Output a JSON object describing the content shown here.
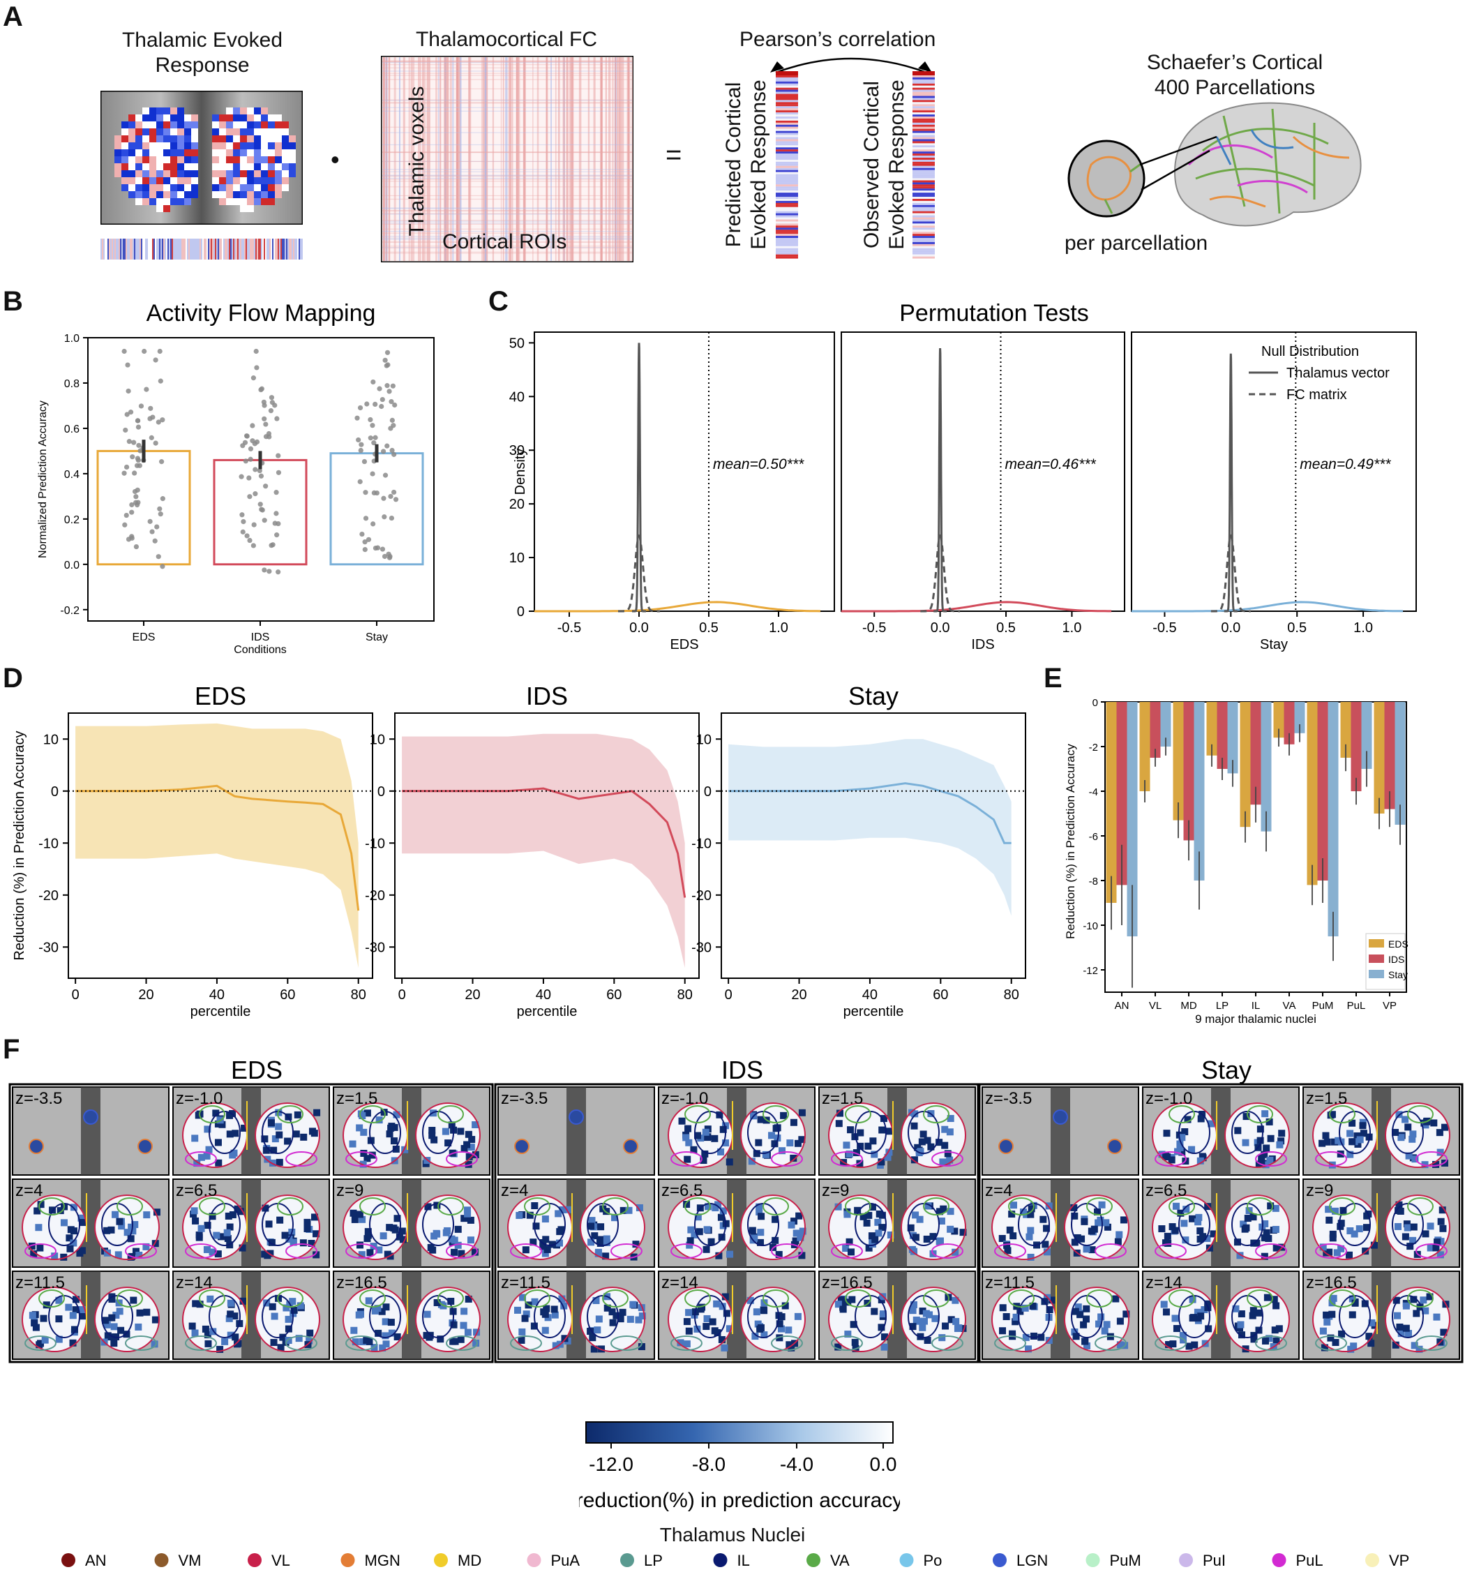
{
  "panels": {
    "A": {
      "letter": "A",
      "evoked_title_line1": "Thalamic Evoked",
      "evoked_title_line2": "Response",
      "fc_title": "Thalamocortical FC",
      "fc_ylabel": "Thalamic voxels",
      "fc_xlabel": "Cortical ROIs",
      "dot_operator": "•",
      "equals_operator": "=",
      "corr_title": "Pearson’s correlation",
      "predicted_line1": "Predicted Cortical",
      "predicted_line2": "Evoked Response",
      "observed_line1": "Observed Cortical",
      "observed_line2": "Evoked Response",
      "schaefer_line1": "Schaefer’s Cortical",
      "schaefer_line2": "400 Parcellations",
      "per_parcellation": "per parcellation"
    },
    "B": {
      "letter": "B"
    },
    "C": {
      "letter": "C"
    },
    "D": {
      "letter": "D"
    },
    "E": {
      "letter": "E"
    },
    "F": {
      "letter": "F",
      "groups": [
        "EDS",
        "IDS",
        "Stay"
      ],
      "slice_labels": [
        "z=-3.5",
        "z=-1.0",
        "z=1.5",
        "z=4",
        "z=6.5",
        "z=9",
        "z=11.5",
        "z=14",
        "z=16.5"
      ],
      "colorbar_ticks": [
        "-12.0",
        "-8.0",
        "-4.0",
        "0.0"
      ],
      "colorbar_label": "reduction(%) in prediction accuracy",
      "colorbar_colors": [
        "#0d2a6b",
        "#ffffff"
      ],
      "legend_title": "Thalamus Nuclei",
      "nuclei": [
        {
          "name": "AN",
          "color": "#7a1010"
        },
        {
          "name": "VM",
          "color": "#8c5a2b"
        },
        {
          "name": "VL",
          "color": "#c8204a"
        },
        {
          "name": "MGN",
          "color": "#e37d35"
        },
        {
          "name": "MD",
          "color": "#f0cc2a"
        },
        {
          "name": "PuA",
          "color": "#f0b8d0"
        },
        {
          "name": "LP",
          "color": "#5a9a90"
        },
        {
          "name": "IL",
          "color": "#0a1a70"
        },
        {
          "name": "VA",
          "color": "#5aaa48"
        },
        {
          "name": "Po",
          "color": "#78c6ea"
        },
        {
          "name": "LGN",
          "color": "#3a5ad0"
        },
        {
          "name": "PuM",
          "color": "#b8f0c8"
        },
        {
          "name": "PuI",
          "color": "#cbb8ea"
        },
        {
          "name": "PuL",
          "color": "#d22ad2"
        },
        {
          "name": "VP",
          "color": "#f8f0b8"
        }
      ]
    }
  },
  "chart_data": [
    {
      "id": "B",
      "type": "bar",
      "title": "Activity Flow Mapping",
      "xlabel": "Conditions",
      "ylabel": "Normalized Prediction Accuracy",
      "categories": [
        "EDS",
        "IDS",
        "Stay"
      ],
      "values": [
        0.5,
        0.46,
        0.49
      ],
      "error": [
        0.05,
        0.04,
        0.04
      ],
      "colors": [
        "#e8a838",
        "#d24a5a",
        "#7ab0d8"
      ],
      "ylim": [
        -0.25,
        1.0
      ],
      "yticks": [
        -0.2,
        0.0,
        0.2,
        0.4,
        0.6,
        0.8,
        1.0
      ],
      "points": "overlaid per-subject scatter (gray)"
    },
    {
      "id": "C",
      "type": "line",
      "title": "Permutation Tests",
      "ylabel": "Density",
      "xlim": [
        -0.75,
        1.4
      ],
      "ylim": [
        0,
        52
      ],
      "xticks": [
        -0.5,
        0.0,
        0.5,
        1.0
      ],
      "yticks": [
        0,
        10,
        20,
        30,
        40,
        50
      ],
      "legend_title": "Null Distribution",
      "legend": [
        "Thalamus vector",
        "FC matrix"
      ],
      "legend_position": "top-right",
      "subplots": [
        {
          "xlabel": "EDS",
          "annotation": "mean=0.50***",
          "mean": 0.5,
          "color": "#e8a838",
          "null_peak": 50,
          "fc_peak": 14
        },
        {
          "xlabel": "IDS",
          "annotation": "mean=0.46***",
          "mean": 0.46,
          "color": "#d24a5a",
          "null_peak": 49,
          "fc_peak": 14
        },
        {
          "xlabel": "Stay",
          "annotation": "mean=0.49***",
          "mean": 0.49,
          "color": "#7ab0d8",
          "null_peak": 48,
          "fc_peak": 14
        }
      ]
    },
    {
      "id": "D",
      "type": "area",
      "ylabel": "Reduction (%) in Prediction Accuracy",
      "xlim": [
        -2,
        84
      ],
      "ylim": [
        -36,
        15
      ],
      "xticks": [
        0,
        20,
        40,
        60,
        80
      ],
      "yticks": [
        -30,
        -20,
        -10,
        0,
        10
      ],
      "subplots": [
        {
          "title": "EDS",
          "xlabel": "percentile",
          "color": "#e8a838",
          "fill": "#f6dfa8",
          "x": [
            0,
            10,
            20,
            30,
            40,
            45,
            50,
            60,
            65,
            70,
            75,
            78,
            80
          ],
          "mean": [
            0,
            0,
            0,
            0.3,
            1.0,
            -1.0,
            -1.5,
            -2.0,
            -2.2,
            -2.5,
            -4.5,
            -12,
            -23
          ],
          "upper": [
            12.5,
            12.5,
            12.5,
            12.8,
            13,
            12.5,
            12,
            12,
            12,
            11.5,
            10,
            2,
            -10
          ],
          "lower": [
            -13,
            -13,
            -13,
            -12.5,
            -12,
            -13,
            -13.5,
            -14.5,
            -15,
            -16,
            -19,
            -27,
            -34
          ]
        },
        {
          "title": "IDS",
          "xlabel": "percentile",
          "color": "#d24a5a",
          "fill": "#f0c8cc",
          "x": [
            0,
            10,
            20,
            30,
            40,
            50,
            55,
            60,
            65,
            70,
            75,
            78,
            80
          ],
          "mean": [
            0,
            0,
            0,
            0,
            0.5,
            -1.5,
            -1.0,
            -0.5,
            0,
            -2.5,
            -6,
            -12,
            -20.5
          ],
          "upper": [
            10.5,
            10.5,
            10.5,
            10.5,
            11,
            11,
            11,
            10.5,
            10,
            8,
            4,
            -2,
            -10
          ],
          "lower": [
            -12,
            -12,
            -12,
            -12,
            -11.5,
            -14,
            -13.5,
            -13,
            -14,
            -17,
            -22,
            -28,
            -34
          ]
        },
        {
          "title": "Stay",
          "xlabel": "percentile",
          "color": "#7ab0d8",
          "fill": "#d6e8f5",
          "x": [
            0,
            10,
            20,
            30,
            40,
            50,
            55,
            60,
            65,
            70,
            75,
            78,
            80
          ],
          "mean": [
            0,
            0,
            0,
            0,
            0.5,
            1.5,
            1.0,
            0,
            -1.0,
            -3.0,
            -5.5,
            -10,
            -10
          ],
          "upper": [
            9,
            8.5,
            8.5,
            8.5,
            9,
            10,
            10,
            9,
            8,
            6.5,
            5,
            1,
            -2
          ],
          "lower": [
            -9.5,
            -9.5,
            -9.5,
            -9.5,
            -9,
            -9,
            -9.5,
            -10,
            -11,
            -13,
            -16,
            -20,
            -24
          ]
        }
      ]
    },
    {
      "id": "E",
      "type": "bar",
      "xlabel": "9 major thalamic nuclei",
      "ylabel": "Reduction (%) in Prediction Accuracy",
      "categories": [
        "AN",
        "VL",
        "MD",
        "LP",
        "IL",
        "VA",
        "PuM",
        "PuL",
        "VP"
      ],
      "ylim": [
        -13,
        0
      ],
      "yticks": [
        0,
        -2,
        -4,
        -6,
        -8,
        -10,
        -12
      ],
      "legend_position": "bottom-right",
      "series": [
        {
          "name": "EDS",
          "color": "#d9a640",
          "values": [
            -9.0,
            -4.0,
            -5.3,
            -2.4,
            -5.6,
            -1.6,
            -8.2,
            -2.5,
            -5.0
          ],
          "err": [
            1.2,
            0.5,
            0.8,
            0.5,
            0.7,
            0.4,
            0.9,
            0.6,
            0.7
          ]
        },
        {
          "name": "IDS",
          "color": "#c8505c",
          "values": [
            -8.2,
            -2.5,
            -6.2,
            -3.0,
            -4.6,
            -1.9,
            -8.0,
            -4.0,
            -4.8
          ],
          "err": [
            1.8,
            0.4,
            0.9,
            0.5,
            0.8,
            0.5,
            1.0,
            0.6,
            0.8
          ]
        },
        {
          "name": "Stay",
          "color": "#88b0d0",
          "values": [
            -10.5,
            -2.0,
            -8.0,
            -3.2,
            -5.8,
            -1.4,
            -10.5,
            -3.0,
            -5.5
          ],
          "err": [
            2.3,
            0.4,
            1.3,
            0.6,
            0.9,
            0.4,
            1.1,
            0.8,
            0.9
          ]
        }
      ]
    }
  ]
}
